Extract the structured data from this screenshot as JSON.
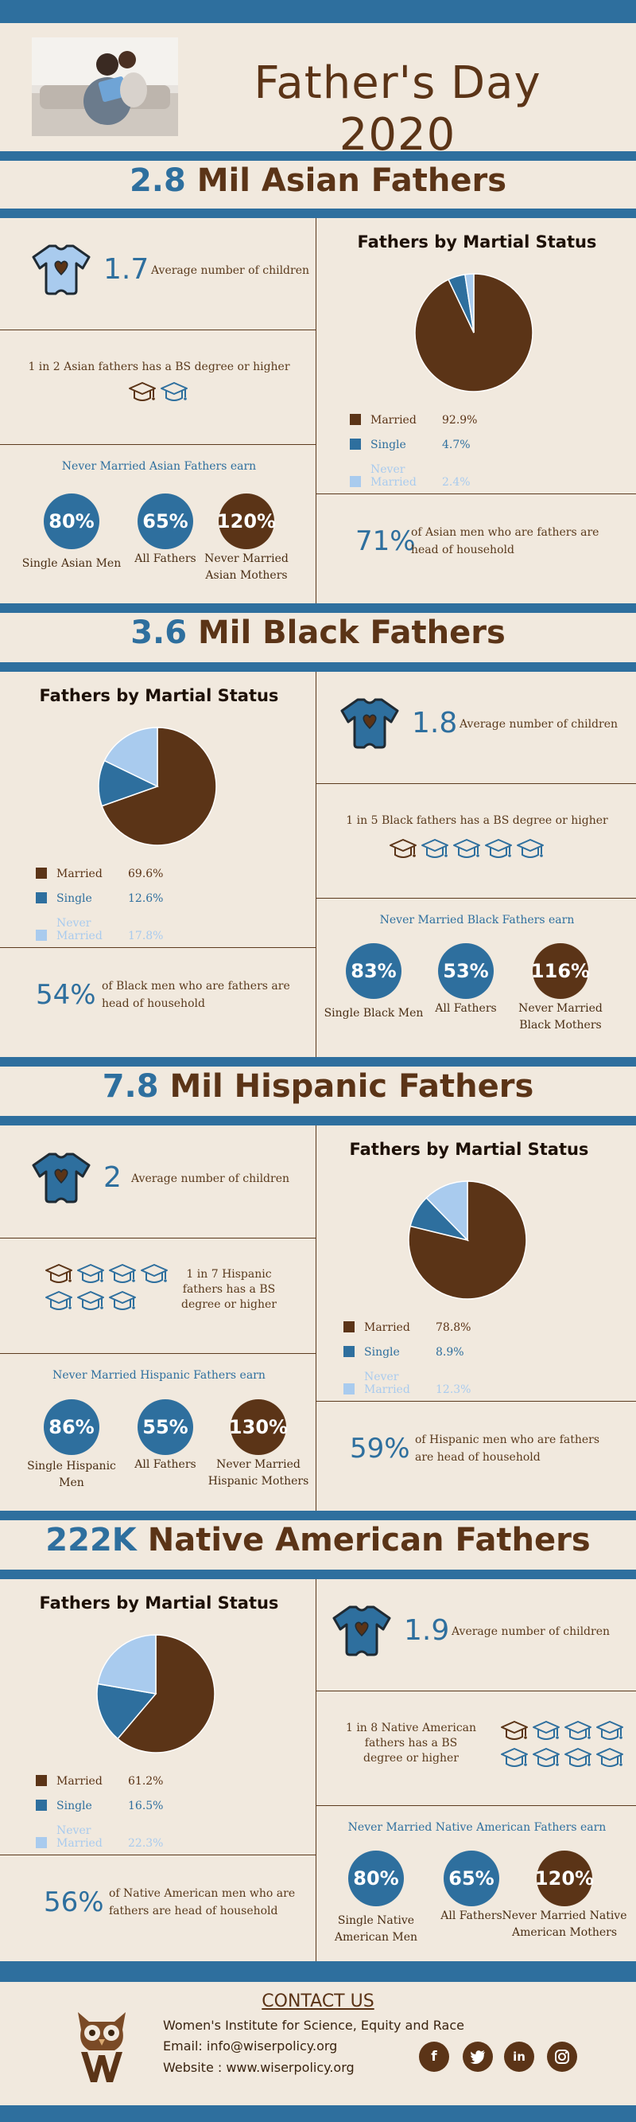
{
  "header": {
    "title": "Father's Day  2020"
  },
  "legend_labels": [
    "Married",
    "Single",
    "Never Married"
  ],
  "colors": {
    "married": "#5b3417",
    "single": "#2e6f9e",
    "never_married": "#a9cbee"
  },
  "asian": {
    "title_num": "2.8",
    "title_text": " Mil Asian Fathers",
    "avg_children": "1.7",
    "avg_label": "Average number of children",
    "degree_text": "1 in 2 Asian fathers has a BS degree or higher",
    "degree_caps": 2,
    "earn_title": "Never Married Asian Fathers earn",
    "earn": [
      {
        "value": "80%",
        "label": "Single Asian Men"
      },
      {
        "value": "65%",
        "label": "All Fathers"
      },
      {
        "value": "120%",
        "label": "Never Married Asian Mothers"
      }
    ],
    "pie_title": "Fathers by Martial Status",
    "pie_values": [
      "92.9%",
      "4.7%",
      "2.4%"
    ],
    "hoh_pct": "71%",
    "hoh_text": "of Asian men who are fathers are head of household"
  },
  "black": {
    "title_num": "3.6",
    "title_text": " Mil Black Fathers",
    "avg_children": "1.8",
    "avg_label": "Average number of children",
    "degree_text": "1 in 5 Black fathers has a BS degree or higher",
    "degree_caps": 5,
    "earn_title": "Never Married Black Fathers earn",
    "earn": [
      {
        "value": "83%",
        "label": "Single Black Men"
      },
      {
        "value": "53%",
        "label": "All Fathers"
      },
      {
        "value": "116%",
        "label": "Never Married Black Mothers"
      }
    ],
    "pie_title": "Fathers by Martial Status",
    "pie_values": [
      "69.6%",
      "12.6%",
      "17.8%"
    ],
    "hoh_pct": "54%",
    "hoh_text": "of Black men who are fathers are head of household"
  },
  "hispanic": {
    "title_num": "7.8",
    "title_text": " Mil Hispanic Fathers",
    "avg_children": "2",
    "avg_label": "Average number of children",
    "degree_text": "1 in 7 Hispanic fathers has a BS degree or higher",
    "degree_caps": 7,
    "earn_title": "Never Married Hispanic Fathers earn",
    "earn": [
      {
        "value": "86%",
        "label": "Single Hispanic Men"
      },
      {
        "value": "55%",
        "label": "All Fathers"
      },
      {
        "value": "130%",
        "label": "Never Married Hispanic Mothers"
      }
    ],
    "pie_title": "Fathers by Martial Status",
    "pie_values": [
      "78.8%",
      "8.9%",
      "12.3%"
    ],
    "hoh_pct": "59%",
    "hoh_text": "of Hispanic men who are fathers are head of household"
  },
  "native": {
    "title_num": "222K",
    "title_text": " Native American Fathers",
    "avg_children": "1.9",
    "avg_label": "Average number of children",
    "degree_text": "1 in 8 Native American fathers has a BS degree or higher",
    "degree_caps": 8,
    "earn_title": "Never Married Native American Fathers earn",
    "earn": [
      {
        "value": "80%",
        "label": "Single Native American Men"
      },
      {
        "value": "65%",
        "label": "All Fathers"
      },
      {
        "value": "120%",
        "label": "Never Married Native American Mothers"
      }
    ],
    "pie_title": "Fathers by Martial Status",
    "pie_values": [
      "61.2%",
      "16.5%",
      "22.3%"
    ],
    "hoh_pct": "56%",
    "hoh_text": "of Native American men who are fathers are head of household"
  },
  "chart_data": [
    {
      "type": "pie",
      "title": "Fathers by Martial Status",
      "categories": [
        "Married",
        "Single",
        "Never Married"
      ],
      "values": [
        92.9,
        4.7,
        2.4
      ]
    },
    {
      "type": "pie",
      "title": "Fathers by Martial Status",
      "categories": [
        "Married",
        "Single",
        "Never Married"
      ],
      "values": [
        69.6,
        12.6,
        17.8
      ]
    },
    {
      "type": "pie",
      "title": "Fathers by Martial Status",
      "categories": [
        "Married",
        "Single",
        "Never Married"
      ],
      "values": [
        78.8,
        8.9,
        12.3
      ]
    },
    {
      "type": "pie",
      "title": "Fathers by Martial Status",
      "categories": [
        "Married",
        "Single",
        "Never Married"
      ],
      "values": [
        61.2,
        16.5,
        22.3
      ]
    }
  ],
  "contact": {
    "title": "CONTACT US",
    "org": "Women's Institute for Science, Equity and Race",
    "email": "Email: info@wiserpolicy.org",
    "website": "Website : www.wiserpolicy.org",
    "social_icons": [
      "facebook-icon",
      "twitter-icon",
      "linkedin-icon",
      "instagram-icon"
    ]
  }
}
